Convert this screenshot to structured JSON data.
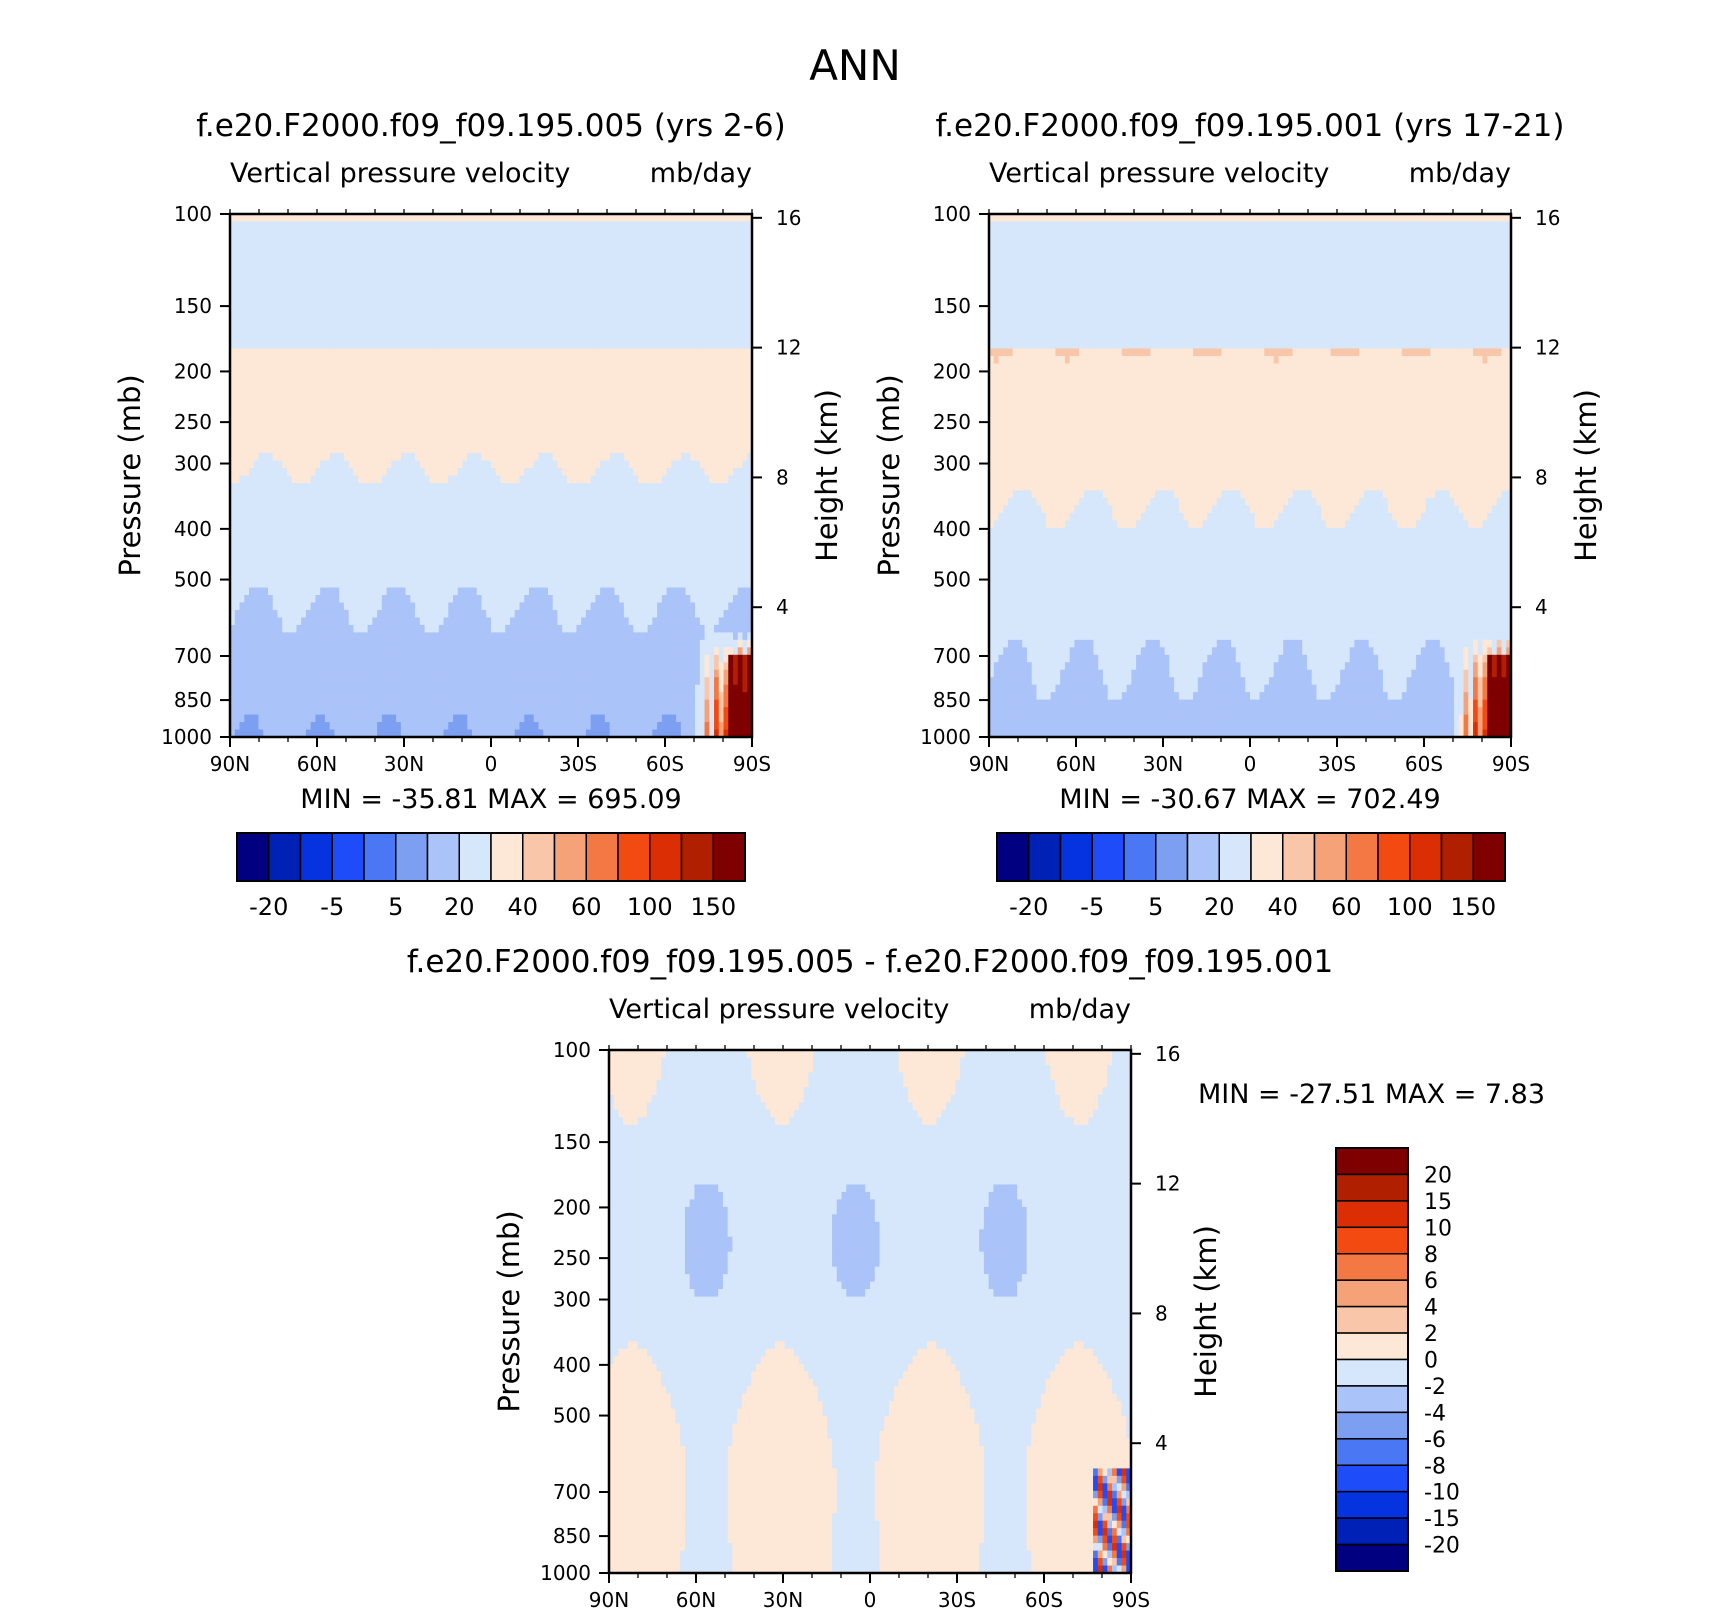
{
  "figure": {
    "title": "ANN"
  },
  "colors": {
    "main_levels": [
      "#000080",
      "#0021b5",
      "#0433df",
      "#1d4cf8",
      "#4a78f5",
      "#7d9ff1",
      "#aac3f8",
      "#d6e6fb",
      "#fde8d7",
      "#f9c6a9",
      "#f5a279",
      "#f47843",
      "#f24a10",
      "#db2e05",
      "#b02000",
      "#7e0000"
    ],
    "diff_levels": [
      "#000080",
      "#0021b5",
      "#0433df",
      "#1d4cf8",
      "#4a78f5",
      "#7d9ff1",
      "#aac3f8",
      "#d6e6fb",
      "#fde8d7",
      "#f9c6a9",
      "#f5a279",
      "#f47843",
      "#f24a10",
      "#db2e05",
      "#b02000",
      "#7e0000"
    ]
  },
  "chart_data": [
    {
      "type": "heatmap",
      "title": "f.e20.F2000.f09_f09.195.005 (yrs 2-6)",
      "variable": "Vertical pressure velocity",
      "units": "mb/day",
      "ylabel": "Pressure (mb)",
      "ylabel_right": "Height (km)",
      "x_ticks": [
        "90N",
        "60N",
        "30N",
        "0",
        "30S",
        "60S",
        "90S"
      ],
      "y_ticks": [
        "100",
        "150",
        "200",
        "250",
        "300",
        "400",
        "500",
        "700",
        "850",
        "1000"
      ],
      "y_right_ticks": [
        "16",
        "12",
        "8",
        "4"
      ],
      "stats": {
        "min_label": "MIN =",
        "min": "-35.81",
        "max_label": "MAX =",
        "max": "695.09"
      },
      "colorbar": {
        "orientation": "horizontal",
        "tick_labels": [
          "-20",
          "-5",
          "5",
          "20",
          "40",
          "60",
          "100",
          "150"
        ]
      }
    },
    {
      "type": "heatmap",
      "title": "f.e20.F2000.f09_f09.195.001 (yrs 17-21)",
      "variable": "Vertical pressure velocity",
      "units": "mb/day",
      "ylabel": "Pressure (mb)",
      "ylabel_right": "Height (km)",
      "x_ticks": [
        "90N",
        "60N",
        "30N",
        "0",
        "30S",
        "60S",
        "90S"
      ],
      "y_ticks": [
        "100",
        "150",
        "200",
        "250",
        "300",
        "400",
        "500",
        "700",
        "850",
        "1000"
      ],
      "y_right_ticks": [
        "16",
        "12",
        "8",
        "4"
      ],
      "stats": {
        "min_label": "MIN =",
        "min": "-30.67",
        "max_label": "MAX =",
        "max": "702.49"
      },
      "colorbar": {
        "orientation": "horizontal",
        "tick_labels": [
          "-20",
          "-5",
          "5",
          "20",
          "40",
          "60",
          "100",
          "150"
        ]
      }
    },
    {
      "type": "heatmap",
      "title": "f.e20.F2000.f09_f09.195.005 - f.e20.F2000.f09_f09.195.001",
      "variable": "Vertical pressure velocity",
      "units": "mb/day",
      "ylabel": "Pressure (mb)",
      "ylabel_right": "Height (km)",
      "x_ticks": [
        "90N",
        "60N",
        "30N",
        "0",
        "30S",
        "60S",
        "90S"
      ],
      "y_ticks": [
        "100",
        "150",
        "200",
        "250",
        "300",
        "400",
        "500",
        "700",
        "850",
        "1000"
      ],
      "y_right_ticks": [
        "16",
        "12",
        "8",
        "4"
      ],
      "stats": {
        "min_label": "MIN =",
        "min": "-27.51",
        "max_label": "MAX =",
        "max": "7.83"
      },
      "colorbar": {
        "orientation": "vertical",
        "tick_labels": [
          "20",
          "15",
          "10",
          "8",
          "6",
          "4",
          "2",
          "0",
          "-2",
          "-4",
          "-6",
          "-8",
          "-10",
          "-15",
          "-20"
        ]
      }
    }
  ]
}
